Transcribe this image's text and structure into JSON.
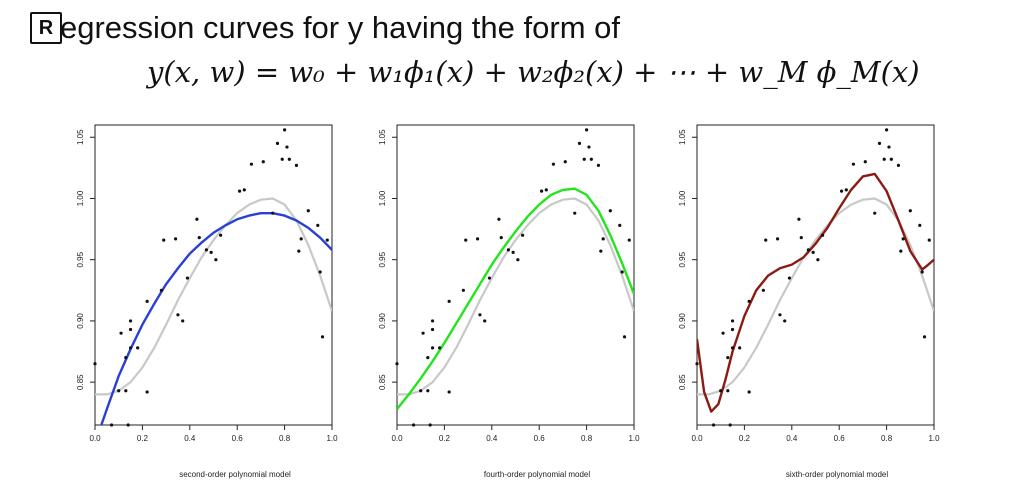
{
  "slide": {
    "bullet_glyph": "R",
    "title": "egression curves for y having the form of",
    "formula": "y(x, w) = w₀ + w₁ϕ₁(x) + w₂ϕ₂(x) + ⋯ + w_M ϕ_M(x)"
  },
  "colors": {
    "second_order": "#2a3fd6",
    "fourth_order": "#22e51c",
    "sixth_order": "#8b1a14",
    "reference_curve": "#c8c8c8",
    "points": "#111111"
  },
  "chart_data": [
    {
      "type": "scatter",
      "title": "",
      "xlabel": "second-order polynomial model",
      "ylabel": "",
      "xlim": [
        0.0,
        1.0
      ],
      "ylim": [
        0.815,
        1.06
      ],
      "xticks": [
        "0.0",
        "0.2",
        "0.4",
        "0.6",
        "0.8",
        "1.0"
      ],
      "yticks": [
        "0.85",
        "0.90",
        "0.95",
        "1.00",
        "1.05"
      ],
      "points": [
        [
          0.0,
          0.865
        ],
        [
          0.07,
          0.815
        ],
        [
          0.1,
          0.843
        ],
        [
          0.11,
          0.89
        ],
        [
          0.13,
          0.843
        ],
        [
          0.13,
          0.87
        ],
        [
          0.14,
          0.815
        ],
        [
          0.15,
          0.9
        ],
        [
          0.15,
          0.893
        ],
        [
          0.15,
          0.878
        ],
        [
          0.18,
          0.878
        ],
        [
          0.22,
          0.842
        ],
        [
          0.22,
          0.916
        ],
        [
          0.28,
          0.925
        ],
        [
          0.29,
          0.966
        ],
        [
          0.34,
          0.967
        ],
        [
          0.35,
          0.905
        ],
        [
          0.37,
          0.9
        ],
        [
          0.39,
          0.935
        ],
        [
          0.43,
          0.983
        ],
        [
          0.44,
          0.968
        ],
        [
          0.47,
          0.958
        ],
        [
          0.49,
          0.956
        ],
        [
          0.51,
          0.95
        ],
        [
          0.53,
          0.97
        ],
        [
          0.61,
          1.006
        ],
        [
          0.63,
          1.007
        ],
        [
          0.66,
          1.028
        ],
        [
          0.71,
          1.03
        ],
        [
          0.75,
          0.988
        ],
        [
          0.77,
          1.045
        ],
        [
          0.79,
          1.032
        ],
        [
          0.8,
          1.056
        ],
        [
          0.81,
          1.042
        ],
        [
          0.82,
          1.032
        ],
        [
          0.85,
          1.027
        ],
        [
          0.86,
          0.957
        ],
        [
          0.87,
          0.967
        ],
        [
          0.9,
          0.99
        ],
        [
          0.94,
          0.978
        ],
        [
          0.95,
          0.94
        ],
        [
          0.96,
          0.887
        ],
        [
          0.98,
          0.966
        ]
      ],
      "series": [
        {
          "name": "second-order fit",
          "color_key": "second_order",
          "x": [
            0,
            0.05,
            0.1,
            0.15,
            0.2,
            0.25,
            0.3,
            0.35,
            0.4,
            0.45,
            0.5,
            0.55,
            0.6,
            0.65,
            0.7,
            0.75,
            0.8,
            0.85,
            0.9,
            0.95,
            1.0
          ],
          "y": [
            0.8,
            0.828,
            0.855,
            0.877,
            0.897,
            0.914,
            0.93,
            0.943,
            0.955,
            0.964,
            0.972,
            0.978,
            0.983,
            0.986,
            0.988,
            0.988,
            0.986,
            0.982,
            0.976,
            0.968,
            0.958
          ]
        },
        {
          "name": "reference curve",
          "color_key": "reference_curve",
          "x": [
            0,
            0.05,
            0.1,
            0.15,
            0.2,
            0.25,
            0.3,
            0.35,
            0.4,
            0.45,
            0.5,
            0.55,
            0.6,
            0.65,
            0.7,
            0.75,
            0.8,
            0.85,
            0.9,
            0.95,
            1.0
          ],
          "y": [
            0.84,
            0.84,
            0.843,
            0.85,
            0.862,
            0.878,
            0.897,
            0.917,
            0.935,
            0.952,
            0.966,
            0.978,
            0.988,
            0.995,
            0.999,
            1.0,
            0.995,
            0.982,
            0.962,
            0.937,
            0.908
          ]
        }
      ]
    },
    {
      "type": "scatter",
      "title": "",
      "xlabel": "fourth-order polynomial model",
      "ylabel": "",
      "xlim": [
        0.0,
        1.0
      ],
      "ylim": [
        0.815,
        1.06
      ],
      "xticks": [
        "0.0",
        "0.2",
        "0.4",
        "0.6",
        "0.8",
        "1.0"
      ],
      "yticks": [
        "0.85",
        "0.90",
        "0.95",
        "1.00",
        "1.05"
      ],
      "points": [
        [
          0.0,
          0.865
        ],
        [
          0.07,
          0.815
        ],
        [
          0.1,
          0.843
        ],
        [
          0.11,
          0.89
        ],
        [
          0.13,
          0.843
        ],
        [
          0.13,
          0.87
        ],
        [
          0.14,
          0.815
        ],
        [
          0.15,
          0.9
        ],
        [
          0.15,
          0.893
        ],
        [
          0.15,
          0.878
        ],
        [
          0.18,
          0.878
        ],
        [
          0.22,
          0.842
        ],
        [
          0.22,
          0.916
        ],
        [
          0.28,
          0.925
        ],
        [
          0.29,
          0.966
        ],
        [
          0.34,
          0.967
        ],
        [
          0.35,
          0.905
        ],
        [
          0.37,
          0.9
        ],
        [
          0.39,
          0.935
        ],
        [
          0.43,
          0.983
        ],
        [
          0.44,
          0.968
        ],
        [
          0.47,
          0.958
        ],
        [
          0.49,
          0.956
        ],
        [
          0.51,
          0.95
        ],
        [
          0.53,
          0.97
        ],
        [
          0.61,
          1.006
        ],
        [
          0.63,
          1.007
        ],
        [
          0.66,
          1.028
        ],
        [
          0.71,
          1.03
        ],
        [
          0.75,
          0.988
        ],
        [
          0.77,
          1.045
        ],
        [
          0.79,
          1.032
        ],
        [
          0.8,
          1.056
        ],
        [
          0.81,
          1.042
        ],
        [
          0.82,
          1.032
        ],
        [
          0.85,
          1.027
        ],
        [
          0.86,
          0.957
        ],
        [
          0.87,
          0.967
        ],
        [
          0.9,
          0.99
        ],
        [
          0.94,
          0.978
        ],
        [
          0.95,
          0.94
        ],
        [
          0.96,
          0.887
        ],
        [
          0.98,
          0.966
        ]
      ],
      "series": [
        {
          "name": "fourth-order fit",
          "color_key": "fourth_order",
          "x": [
            0,
            0.05,
            0.1,
            0.15,
            0.2,
            0.25,
            0.3,
            0.35,
            0.4,
            0.45,
            0.5,
            0.55,
            0.6,
            0.65,
            0.7,
            0.75,
            0.8,
            0.85,
            0.9,
            0.95,
            1.0
          ],
          "y": [
            0.828,
            0.84,
            0.853,
            0.867,
            0.882,
            0.898,
            0.914,
            0.93,
            0.946,
            0.96,
            0.973,
            0.985,
            0.995,
            1.003,
            1.007,
            1.008,
            1.003,
            0.99,
            0.97,
            0.947,
            0.922
          ]
        },
        {
          "name": "reference curve",
          "color_key": "reference_curve",
          "x": [
            0,
            0.05,
            0.1,
            0.15,
            0.2,
            0.25,
            0.3,
            0.35,
            0.4,
            0.45,
            0.5,
            0.55,
            0.6,
            0.65,
            0.7,
            0.75,
            0.8,
            0.85,
            0.9,
            0.95,
            1.0
          ],
          "y": [
            0.84,
            0.84,
            0.843,
            0.85,
            0.862,
            0.878,
            0.897,
            0.917,
            0.935,
            0.952,
            0.966,
            0.978,
            0.988,
            0.995,
            0.999,
            1.0,
            0.995,
            0.982,
            0.962,
            0.937,
            0.908
          ]
        }
      ]
    },
    {
      "type": "scatter",
      "title": "",
      "xlabel": "sixth-order polynomial model",
      "ylabel": "",
      "xlim": [
        0.0,
        1.0
      ],
      "ylim": [
        0.815,
        1.06
      ],
      "xticks": [
        "0.0",
        "0.2",
        "0.4",
        "0.6",
        "0.8",
        "1.0"
      ],
      "yticks": [
        "0.85",
        "0.90",
        "0.95",
        "1.00",
        "1.05"
      ],
      "points": [
        [
          0.0,
          0.865
        ],
        [
          0.07,
          0.815
        ],
        [
          0.1,
          0.843
        ],
        [
          0.11,
          0.89
        ],
        [
          0.13,
          0.843
        ],
        [
          0.13,
          0.87
        ],
        [
          0.14,
          0.815
        ],
        [
          0.15,
          0.9
        ],
        [
          0.15,
          0.893
        ],
        [
          0.15,
          0.878
        ],
        [
          0.18,
          0.878
        ],
        [
          0.22,
          0.842
        ],
        [
          0.22,
          0.916
        ],
        [
          0.28,
          0.925
        ],
        [
          0.29,
          0.966
        ],
        [
          0.34,
          0.967
        ],
        [
          0.35,
          0.905
        ],
        [
          0.37,
          0.9
        ],
        [
          0.39,
          0.935
        ],
        [
          0.43,
          0.983
        ],
        [
          0.44,
          0.968
        ],
        [
          0.47,
          0.958
        ],
        [
          0.49,
          0.956
        ],
        [
          0.51,
          0.95
        ],
        [
          0.53,
          0.97
        ],
        [
          0.61,
          1.006
        ],
        [
          0.63,
          1.007
        ],
        [
          0.66,
          1.028
        ],
        [
          0.71,
          1.03
        ],
        [
          0.75,
          0.988
        ],
        [
          0.77,
          1.045
        ],
        [
          0.79,
          1.032
        ],
        [
          0.8,
          1.056
        ],
        [
          0.81,
          1.042
        ],
        [
          0.82,
          1.032
        ],
        [
          0.85,
          1.027
        ],
        [
          0.86,
          0.957
        ],
        [
          0.87,
          0.967
        ],
        [
          0.9,
          0.99
        ],
        [
          0.94,
          0.978
        ],
        [
          0.95,
          0.94
        ],
        [
          0.96,
          0.887
        ],
        [
          0.98,
          0.966
        ]
      ],
      "series": [
        {
          "name": "sixth-order fit",
          "color_key": "sixth_order",
          "x": [
            0,
            0.03,
            0.06,
            0.09,
            0.12,
            0.15,
            0.2,
            0.25,
            0.3,
            0.35,
            0.4,
            0.45,
            0.5,
            0.55,
            0.6,
            0.65,
            0.7,
            0.75,
            0.8,
            0.85,
            0.9,
            0.95,
            0.97,
            1.0
          ],
          "y": [
            0.885,
            0.842,
            0.826,
            0.832,
            0.852,
            0.875,
            0.904,
            0.925,
            0.937,
            0.943,
            0.946,
            0.952,
            0.963,
            0.976,
            0.992,
            1.007,
            1.018,
            1.02,
            1.006,
            0.982,
            0.957,
            0.942,
            0.945,
            0.95
          ]
        },
        {
          "name": "reference curve",
          "color_key": "reference_curve",
          "x": [
            0,
            0.05,
            0.1,
            0.15,
            0.2,
            0.25,
            0.3,
            0.35,
            0.4,
            0.45,
            0.5,
            0.55,
            0.6,
            0.65,
            0.7,
            0.75,
            0.8,
            0.85,
            0.9,
            0.95,
            1.0
          ],
          "y": [
            0.84,
            0.84,
            0.843,
            0.85,
            0.862,
            0.878,
            0.897,
            0.917,
            0.935,
            0.952,
            0.966,
            0.978,
            0.988,
            0.995,
            0.999,
            1.0,
            0.995,
            0.982,
            0.962,
            0.937,
            0.908
          ]
        }
      ]
    }
  ]
}
